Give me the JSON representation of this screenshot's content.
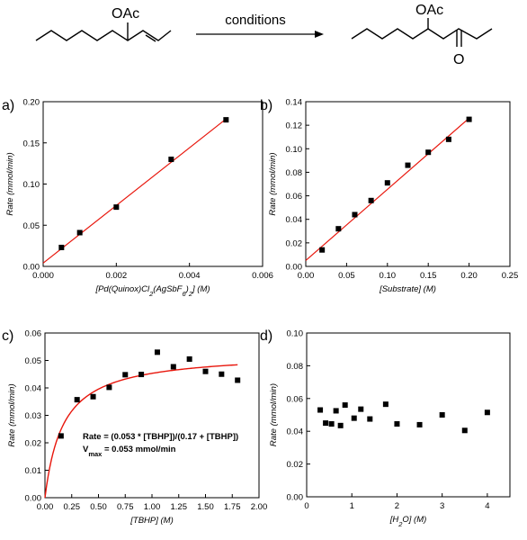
{
  "scheme": {
    "left_label": "OAc",
    "arrow_label": "conditions",
    "right_label": "OAc",
    "oxygen_label": "O"
  },
  "chart_data": [
    {
      "type": "scatter",
      "panel_label": "a)",
      "xlabel_parts": [
        "[Pd(Quinox)Cl",
        "2",
        "(AgSbF",
        "6",
        ")",
        "2",
        "] (M)"
      ],
      "ylabel": "Rate (mmol/min)",
      "xlim": [
        0,
        0.006
      ],
      "ylim": [
        0,
        0.2
      ],
      "xticks": [
        0,
        0.002,
        0.004,
        0.006
      ],
      "xtick_labels": [
        "0.000",
        "0.002",
        "0.004",
        "0.006"
      ],
      "yticks": [
        0,
        0.05,
        0.1,
        0.15,
        0.2
      ],
      "ytick_labels": [
        "0.00",
        "0.05",
        "0.10",
        "0.15",
        "0.20"
      ],
      "points": [
        [
          0.0005,
          0.023
        ],
        [
          0.001,
          0.041
        ],
        [
          0.002,
          0.072
        ],
        [
          0.0035,
          0.13
        ],
        [
          0.005,
          0.178
        ]
      ],
      "fit": {
        "kind": "linear",
        "x": [
          0,
          0.005
        ],
        "y": [
          0.004,
          0.179
        ]
      },
      "fit_color": "#e8160c",
      "marker_color": "#000000"
    },
    {
      "type": "scatter",
      "panel_label": "b)",
      "xlabel": "[Substrate] (M)",
      "ylabel": "Rate (mmol/min)",
      "xlim": [
        0,
        0.25
      ],
      "ylim": [
        0,
        0.14
      ],
      "xticks": [
        0,
        0.05,
        0.1,
        0.15,
        0.2,
        0.25
      ],
      "xtick_labels": [
        "0.00",
        "0.05",
        "0.10",
        "0.15",
        "0.20",
        "0.25"
      ],
      "yticks": [
        0,
        0.02,
        0.04,
        0.06,
        0.08,
        0.1,
        0.12,
        0.14
      ],
      "ytick_labels": [
        "0.00",
        "0.02",
        "0.04",
        "0.06",
        "0.08",
        "0.10",
        "0.12",
        "0.14"
      ],
      "points": [
        [
          0.02,
          0.014
        ],
        [
          0.04,
          0.032
        ],
        [
          0.06,
          0.044
        ],
        [
          0.08,
          0.056
        ],
        [
          0.1,
          0.071
        ],
        [
          0.125,
          0.086
        ],
        [
          0.15,
          0.097
        ],
        [
          0.175,
          0.108
        ],
        [
          0.2,
          0.125
        ]
      ],
      "fit": {
        "kind": "linear",
        "x": [
          0,
          0.2
        ],
        "y": [
          0.005,
          0.126
        ]
      },
      "fit_color": "#e8160c",
      "marker_color": "#000000"
    },
    {
      "type": "scatter",
      "panel_label": "c)",
      "xlabel": "[TBHP] (M)",
      "ylabel": "Rate (mmol/min)",
      "xlim": [
        0,
        2.0
      ],
      "ylim": [
        0,
        0.06
      ],
      "xticks": [
        0,
        0.25,
        0.5,
        0.75,
        1.0,
        1.25,
        1.5,
        1.75,
        2.0
      ],
      "xtick_labels": [
        "0.00",
        "0.25",
        "0.50",
        "0.75",
        "1.00",
        "1.25",
        "1.50",
        "1.75",
        "2.00"
      ],
      "yticks": [
        0,
        0.01,
        0.02,
        0.03,
        0.04,
        0.05,
        0.06
      ],
      "ytick_labels": [
        "0.00",
        "0.01",
        "0.02",
        "0.03",
        "0.04",
        "0.05",
        "0.06"
      ],
      "points": [
        [
          0.15,
          0.0225
        ],
        [
          0.3,
          0.0357
        ],
        [
          0.45,
          0.0368
        ],
        [
          0.6,
          0.0402
        ],
        [
          0.75,
          0.0448
        ],
        [
          0.9,
          0.0449
        ],
        [
          1.05,
          0.053
        ],
        [
          1.2,
          0.0477
        ],
        [
          1.35,
          0.0505
        ],
        [
          1.5,
          0.046
        ],
        [
          1.65,
          0.045
        ],
        [
          1.8,
          0.0428
        ]
      ],
      "fit": {
        "kind": "saturation",
        "vmax": 0.053,
        "k": 0.17,
        "xmax": 1.8
      },
      "fit_color": "#e8160c",
      "marker_color": "#000000",
      "annotation": {
        "equation": "Rate = (0.053 * [TBHP])/(0.17 + [TBHP])",
        "vmax_label_main": "V",
        "vmax_label_sub": "max",
        "vmax_label_rest": " = 0.053 mmol/min"
      }
    },
    {
      "type": "scatter",
      "panel_label": "d)",
      "xlabel": "[H2O] (M)",
      "xlabel_parts": [
        "[H",
        "2",
        "O] (M)"
      ],
      "ylabel": "Rate (mmol/min)",
      "xlim": [
        0,
        4.5
      ],
      "ylim": [
        0,
        0.1
      ],
      "xticks": [
        0,
        1,
        2,
        3,
        4
      ],
      "xtick_labels": [
        "0",
        "1",
        "2",
        "3",
        "4"
      ],
      "yticks": [
        0,
        0.02,
        0.04,
        0.06,
        0.08,
        0.1
      ],
      "ytick_labels": [
        "0.00",
        "0.02",
        "0.04",
        "0.06",
        "0.08",
        "0.10"
      ],
      "points": [
        [
          0.3,
          0.053
        ],
        [
          0.42,
          0.045
        ],
        [
          0.55,
          0.0445
        ],
        [
          0.65,
          0.0525
        ],
        [
          0.75,
          0.0435
        ],
        [
          0.85,
          0.056
        ],
        [
          1.05,
          0.048
        ],
        [
          1.2,
          0.0535
        ],
        [
          1.4,
          0.0475
        ],
        [
          1.75,
          0.0565
        ],
        [
          2.0,
          0.0445
        ],
        [
          2.5,
          0.044
        ],
        [
          3.0,
          0.05
        ],
        [
          3.5,
          0.0405
        ],
        [
          4.0,
          0.0515
        ]
      ],
      "marker_color": "#000000"
    }
  ]
}
